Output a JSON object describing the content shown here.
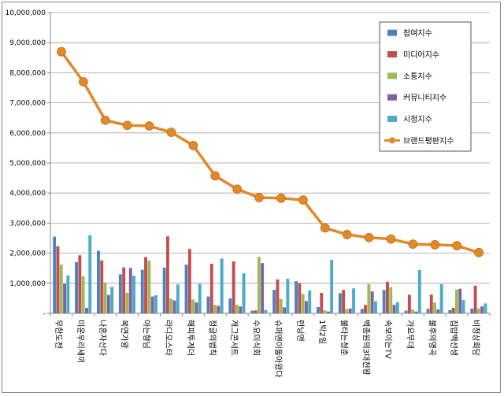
{
  "chart_data": {
    "type": "bar",
    "title": "",
    "xlabel": "",
    "ylabel": "",
    "ylim": [
      0,
      10000000
    ],
    "yticks": [
      "-",
      "1,000,000",
      "2,000,000",
      "3,000,000",
      "4,000,000",
      "5,000,000",
      "6,000,000",
      "7,000,000",
      "8,000,000",
      "9,000,000",
      "10,000,000"
    ],
    "grid": true,
    "legend_position": "top-right",
    "categories": [
      "무한도전",
      "미운우리새끼",
      "나혼자산다",
      "복면가왕",
      "아는형님",
      "라디오스타",
      "해피투게더",
      "정글의법칙",
      "개그콘서트",
      "수요미식회",
      "슈퍼맨이돌아왔다",
      "런닝맨",
      "1박2일",
      "불타는청춘",
      "백종원의3대천왕",
      "속보이는TV",
      "가요무대",
      "불후의명곡",
      "집밥백선생",
      "비정상회담"
    ],
    "series": [
      {
        "name": "참여지수",
        "color": "#4F81BD",
        "kind": "bar",
        "values": [
          2550000,
          1700000,
          2080000,
          1300000,
          1450000,
          1520000,
          1620000,
          560000,
          500000,
          90000,
          780000,
          1070000,
          210000,
          670000,
          150000,
          780000,
          90000,
          150000,
          110000,
          160000
        ]
      },
      {
        "name": "미디어지수",
        "color": "#C0504D",
        "kind": "bar",
        "values": [
          2230000,
          1930000,
          1760000,
          1530000,
          1870000,
          2560000,
          2140000,
          1650000,
          1730000,
          100000,
          1130000,
          1010000,
          680000,
          780000,
          280000,
          1050000,
          620000,
          620000,
          180000,
          920000
        ]
      },
      {
        "name": "소통지수",
        "color": "#9BBB59",
        "kind": "bar",
        "values": [
          1620000,
          1230000,
          1020000,
          680000,
          1750000,
          490000,
          460000,
          280000,
          290000,
          1880000,
          480000,
          640000,
          100000,
          150000,
          970000,
          870000,
          130000,
          360000,
          790000,
          160000
        ]
      },
      {
        "name": "커뮤니티지수",
        "color": "#8064A2",
        "kind": "bar",
        "values": [
          980000,
          180000,
          610000,
          1510000,
          560000,
          430000,
          360000,
          250000,
          230000,
          1670000,
          200000,
          410000,
          60000,
          160000,
          730000,
          280000,
          60000,
          130000,
          820000,
          230000
        ]
      },
      {
        "name": "시청지수",
        "color": "#4BACC6",
        "kind": "bar",
        "values": [
          1260000,
          2600000,
          880000,
          1250000,
          600000,
          960000,
          980000,
          1820000,
          1330000,
          110000,
          1150000,
          760000,
          1780000,
          830000,
          400000,
          370000,
          1440000,
          970000,
          440000,
          330000
        ]
      },
      {
        "name": "브랜드평판지수",
        "color": "#E0892B",
        "kind": "line",
        "values": [
          8700000,
          7700000,
          6420000,
          6250000,
          6230000,
          6020000,
          5580000,
          4570000,
          4130000,
          3850000,
          3830000,
          3770000,
          2840000,
          2620000,
          2520000,
          2470000,
          2300000,
          2280000,
          2250000,
          2020000
        ]
      }
    ]
  }
}
